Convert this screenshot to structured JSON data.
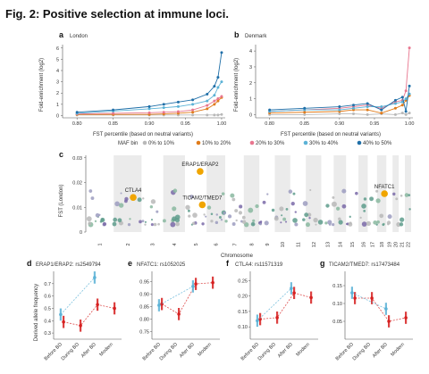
{
  "figure": {
    "title": "Fig. 2: Positive selection at immune loci."
  },
  "legend": {
    "title": "MAF bin",
    "items": [
      {
        "label": "0% to 10%",
        "color": "#b8b8b8"
      },
      {
        "label": "10% to 20%",
        "color": "#e07b1a"
      },
      {
        "label": "20% to 30%",
        "color": "#e8768f"
      },
      {
        "label": "30% to 40%",
        "color": "#5bb2d6"
      },
      {
        "label": "40% to 50%",
        "color": "#1f6fa8"
      }
    ]
  },
  "chart_data": [
    {
      "panel": "a",
      "type": "line",
      "title": "London",
      "xlabel": "FST percentile (based on neutral variants)",
      "ylabel": "Fold-enrichment (log2)",
      "x_ticks": [
        "0.80",
        "0.85",
        "0.90",
        "0.95",
        "1.00"
      ],
      "y_ticks": [
        "0",
        "1",
        "2",
        "3",
        "4",
        "5",
        "6"
      ],
      "xlim": [
        0.78,
        1.005
      ],
      "ylim": [
        -0.2,
        6.3
      ],
      "x": [
        0.8,
        0.85,
        0.9,
        0.92,
        0.94,
        0.96,
        0.98,
        0.99,
        0.995,
        1.0
      ],
      "series": [
        {
          "color": "#b8b8b8",
          "values": [
            0.05,
            0.05,
            0.05,
            0.05,
            0.05,
            0.05,
            0.05,
            0.05,
            0.05,
            0.1
          ]
        },
        {
          "color": "#e07b1a",
          "values": [
            0.1,
            0.1,
            0.1,
            0.15,
            0.2,
            0.3,
            0.6,
            1.0,
            1.3,
            1.6
          ]
        },
        {
          "color": "#e8768f",
          "values": [
            0.15,
            0.2,
            0.25,
            0.3,
            0.35,
            0.5,
            0.9,
            1.3,
            1.5,
            1.7
          ]
        },
        {
          "color": "#5bb2d6",
          "values": [
            0.2,
            0.4,
            0.6,
            0.7,
            0.8,
            1.0,
            1.3,
            1.8,
            2.5,
            3.0
          ]
        },
        {
          "color": "#1f6fa8",
          "values": [
            0.3,
            0.5,
            0.8,
            1.0,
            1.2,
            1.4,
            1.9,
            2.6,
            3.4,
            5.6
          ]
        }
      ]
    },
    {
      "panel": "b",
      "type": "line",
      "title": "Denmark",
      "xlabel": "FST percentile (based on neutral variants)",
      "ylabel": "Fold-enrichment (log2)",
      "x_ticks": [
        "0.80",
        "0.85",
        "0.90",
        "0.95",
        "1.00"
      ],
      "y_ticks": [
        "0",
        "1",
        "2",
        "3",
        "4"
      ],
      "xlim": [
        0.78,
        1.005
      ],
      "ylim": [
        -0.2,
        4.4
      ],
      "x": [
        0.8,
        0.85,
        0.9,
        0.92,
        0.94,
        0.96,
        0.98,
        0.99,
        0.995,
        1.0
      ],
      "series": [
        {
          "color": "#b8b8b8",
          "values": [
            0.0,
            0.0,
            0.05,
            0.05,
            0.0,
            0.05,
            0.0,
            0.1,
            0.0,
            0.1
          ]
        },
        {
          "color": "#e07b1a",
          "values": [
            0.1,
            0.15,
            0.2,
            0.3,
            0.3,
            0.1,
            0.4,
            0.6,
            0.9,
            1.2
          ]
        },
        {
          "color": "#e8768f",
          "values": [
            0.2,
            0.3,
            0.4,
            0.5,
            0.6,
            0.4,
            0.8,
            0.9,
            1.5,
            4.2
          ]
        },
        {
          "color": "#5bb2d6",
          "values": [
            0.2,
            0.3,
            0.3,
            0.4,
            0.5,
            0.5,
            0.7,
            0.8,
            1.0,
            1.3
          ]
        },
        {
          "color": "#1f6fa8",
          "values": [
            0.3,
            0.4,
            0.5,
            0.6,
            0.7,
            0.3,
            0.9,
            1.1,
            0.2,
            1.8
          ]
        }
      ]
    },
    {
      "panel": "c",
      "type": "scatter",
      "xlabel": "Chromosome",
      "ylabel": "FST (London)",
      "y_ticks": [
        "0",
        "0.01",
        "0.02",
        "0.03"
      ],
      "ylim": [
        0,
        0.031
      ],
      "chromosomes": [
        "1",
        "2",
        "3",
        "4",
        "5",
        "6",
        "7",
        "8",
        "9",
        "10",
        "11",
        "12",
        "13",
        "14",
        "15",
        "16",
        "17",
        "18",
        "19",
        "20",
        "21",
        "22"
      ],
      "highlights": [
        {
          "label": "ERAP1/ERAP2",
          "chrom": 5,
          "pos": 0.7,
          "y": 0.0245,
          "color": "#f0a500"
        },
        {
          "label": "CTLA4",
          "chrom": 2,
          "pos": 0.7,
          "y": 0.014,
          "color": "#f0a500"
        },
        {
          "label": "TICAM2/TMED7",
          "chrom": 5,
          "pos": 0.8,
          "y": 0.011,
          "color": "#f0a500"
        },
        {
          "label": "NFATC1",
          "chrom": 18,
          "pos": 0.8,
          "y": 0.0155,
          "color": "#f0a500"
        }
      ]
    },
    {
      "panel": "d",
      "type": "scatter",
      "title": "ERAP1/ERAP2: rs2549794",
      "ylabel": "Derived allele frequency",
      "categories": [
        "Before BD",
        "During BD",
        "After BD",
        "Modern"
      ],
      "y_ticks": [
        "0.3",
        "0.4",
        "0.5",
        "0.6",
        "0.7"
      ],
      "ylim": [
        0.25,
        0.8
      ],
      "series": [
        {
          "color": "#d62020",
          "values": [
            0.39,
            0.36,
            0.53,
            0.5
          ]
        },
        {
          "color": "#5bb2d6",
          "values": [
            0.45,
            null,
            0.75,
            null
          ]
        }
      ]
    },
    {
      "panel": "e",
      "type": "scatter",
      "title": "NFATC1: rs1052025",
      "categories": [
        "Before BD",
        "During BD",
        "After BD",
        "Modern"
      ],
      "y_ticks": [
        "0.75",
        "0.80",
        "0.85",
        "0.90",
        "0.95"
      ],
      "ylim": [
        0.72,
        0.99
      ],
      "series": [
        {
          "color": "#d62020",
          "values": [
            0.86,
            0.82,
            0.94,
            0.945
          ]
        },
        {
          "color": "#5bb2d6",
          "values": [
            0.855,
            null,
            0.93,
            null
          ]
        }
      ]
    },
    {
      "panel": "f",
      "type": "scatter",
      "title": "CTLA4: rs11571319",
      "categories": [
        "Before BD",
        "During BD",
        "After BD",
        "Modern"
      ],
      "y_ticks": [
        "0.10",
        "0.15",
        "0.20",
        "0.25"
      ],
      "ylim": [
        0.06,
        0.28
      ],
      "series": [
        {
          "color": "#d62020",
          "values": [
            0.125,
            0.13,
            0.21,
            0.195
          ]
        },
        {
          "color": "#5bb2d6",
          "values": [
            0.12,
            null,
            0.225,
            null
          ]
        }
      ]
    },
    {
      "panel": "g",
      "type": "scatter",
      "title": "TICAM2/TMED7: rs17473484",
      "categories": [
        "Before BD",
        "During BD",
        "After BD",
        "Modern"
      ],
      "y_ticks": [
        "0.05",
        "0.10",
        "0.15"
      ],
      "ylim": [
        0.0,
        0.19
      ],
      "series": [
        {
          "color": "#d62020",
          "values": [
            0.115,
            0.115,
            0.05,
            0.06
          ]
        },
        {
          "color": "#5bb2d6",
          "values": [
            0.13,
            null,
            0.085,
            null
          ]
        }
      ]
    }
  ]
}
